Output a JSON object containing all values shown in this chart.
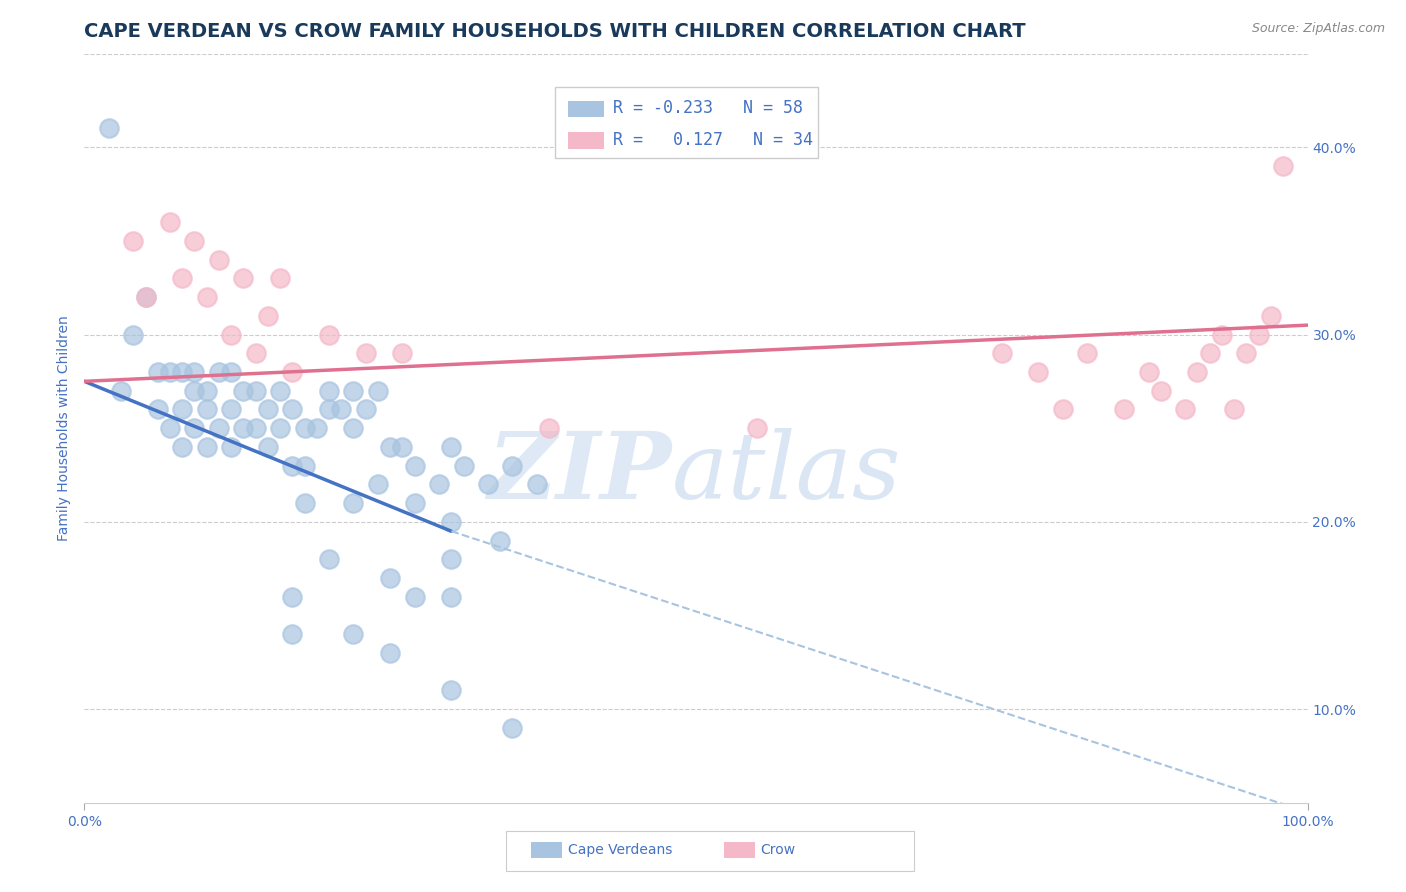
{
  "title": "CAPE VERDEAN VS CROW FAMILY HOUSEHOLDS WITH CHILDREN CORRELATION CHART",
  "source": "Source: ZipAtlas.com",
  "ylabel": "Family Households with Children",
  "yticks": [
    10.0,
    20.0,
    30.0,
    40.0
  ],
  "ytick_labels": [
    "10.0%",
    "20.0%",
    "30.0%",
    "40.0%"
  ],
  "xtick_labels": [
    "0.0%",
    "100.0%"
  ],
  "xlim": [
    0,
    100
  ],
  "ylim": [
    5,
    45
  ],
  "watermark_zip": "ZIP",
  "watermark_atlas": "atlas",
  "legend_blue_r": "R = -0.233",
  "legend_blue_n": "N = 58",
  "legend_pink_r": "R =   0.127",
  "legend_pink_n": "N = 34",
  "blue_color": "#a8c4e0",
  "pink_color": "#f4b8c8",
  "blue_line_color": "#4472c4",
  "pink_line_color": "#e07090",
  "dashed_line_color": "#a8c4e0",
  "blue_scatter_x": [
    2,
    3,
    4,
    5,
    6,
    6,
    7,
    7,
    8,
    8,
    8,
    9,
    9,
    9,
    10,
    10,
    10,
    11,
    11,
    12,
    12,
    12,
    13,
    13,
    14,
    14,
    15,
    15,
    16,
    16,
    17,
    18,
    18,
    19,
    20,
    21,
    22,
    23,
    24,
    26,
    27,
    29,
    30,
    31,
    33,
    35,
    37,
    17,
    18,
    22,
    24,
    27,
    30,
    34,
    22,
    20,
    25,
    30
  ],
  "blue_scatter_y": [
    41,
    27,
    30,
    32,
    28,
    26,
    28,
    25,
    28,
    26,
    24,
    28,
    27,
    25,
    27,
    26,
    24,
    28,
    25,
    28,
    26,
    24,
    27,
    25,
    27,
    25,
    26,
    24,
    27,
    25,
    26,
    25,
    23,
    25,
    27,
    26,
    25,
    26,
    27,
    24,
    23,
    22,
    24,
    23,
    22,
    23,
    22,
    23,
    21,
    21,
    22,
    21,
    20,
    19,
    27,
    26,
    24,
    18
  ],
  "blue_scatter_x2": [
    17,
    22,
    25,
    30,
    35,
    17,
    20,
    25,
    27,
    30
  ],
  "blue_scatter_y2": [
    14,
    14,
    13,
    11,
    9,
    16,
    18,
    17,
    16,
    16
  ],
  "pink_scatter_x": [
    4,
    5,
    7,
    8,
    9,
    10,
    11,
    12,
    13,
    14,
    15,
    16,
    17,
    20,
    23,
    26,
    38,
    55,
    75,
    78,
    80,
    82,
    85,
    87,
    88,
    90,
    91,
    92,
    93,
    94,
    95,
    96,
    97,
    98
  ],
  "pink_scatter_y": [
    35,
    32,
    36,
    33,
    35,
    32,
    34,
    30,
    33,
    29,
    31,
    33,
    28,
    30,
    29,
    29,
    25,
    25,
    29,
    28,
    26,
    29,
    26,
    28,
    27,
    26,
    28,
    29,
    30,
    26,
    29,
    30,
    31,
    39
  ],
  "blue_line_x": [
    0,
    30
  ],
  "blue_line_y": [
    27.5,
    19.5
  ],
  "dashed_line_x": [
    30,
    100
  ],
  "dashed_line_y": [
    19.5,
    4.5
  ],
  "pink_line_x": [
    0,
    100
  ],
  "pink_line_y": [
    27.5,
    30.5
  ],
  "background_color": "#ffffff",
  "grid_color": "#cccccc",
  "title_color": "#1a3a5c",
  "axis_color": "#4472c4",
  "title_fontsize": 14,
  "label_fontsize": 10,
  "tick_fontsize": 10,
  "legend_fontsize": 12,
  "source_fontsize": 9
}
